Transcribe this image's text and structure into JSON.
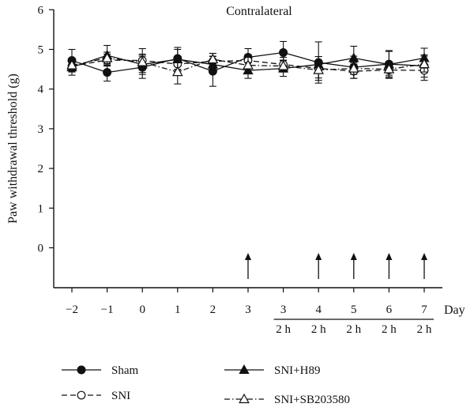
{
  "chart_data": {
    "type": "line",
    "title": "Contralateral",
    "xlabel": "Day",
    "ylabel": "Paw withdrawal threshold (g)",
    "ylim": [
      -1,
      6
    ],
    "yticks": [
      "0",
      "1",
      "2",
      "3",
      "4",
      "5",
      "6"
    ],
    "yticks_values": [
      0,
      1,
      2,
      3,
      4,
      5,
      6
    ],
    "categories": [
      "−2",
      "−1",
      "0",
      "1",
      "2",
      "3",
      "3",
      "4",
      "5",
      "6",
      "7"
    ],
    "sublabels": [
      "",
      "",
      "",
      "",
      "",
      "",
      "2 h",
      "2 h",
      "2 h",
      "2 h",
      "2 h"
    ],
    "arrows_at_index": [
      5,
      7,
      8,
      9,
      10
    ],
    "grid": false,
    "legend_position": "bottom",
    "series": [
      {
        "name": "Sham",
        "marker": "filled-circle",
        "line": "solid",
        "values": [
          4.72,
          4.42,
          4.55,
          4.77,
          4.45,
          4.8,
          4.92,
          4.67,
          4.55,
          4.63,
          4.58
        ],
        "errors": [
          0.28,
          0.22,
          0.28,
          0.28,
          0.38,
          0.22,
          0.28,
          0.52,
          0.28,
          0.32,
          0.28
        ]
      },
      {
        "name": "SNI",
        "marker": "open-circle",
        "line": "dashed",
        "values": [
          4.58,
          4.73,
          4.72,
          4.63,
          4.7,
          4.72,
          4.62,
          4.52,
          4.45,
          4.48,
          4.47
        ],
        "errors": [
          0.15,
          0.15,
          0.3,
          0.2,
          0.2,
          0.15,
          0.18,
          0.3,
          0.18,
          0.2,
          0.25
        ]
      },
      {
        "name": "SNI+H89",
        "marker": "filled-triangle",
        "line": "solid",
        "values": [
          4.55,
          4.85,
          4.62,
          4.75,
          4.62,
          4.47,
          4.52,
          4.62,
          4.78,
          4.62,
          4.78
        ],
        "errors": [
          0.2,
          0.25,
          0.25,
          0.25,
          0.2,
          0.2,
          0.2,
          0.2,
          0.3,
          0.35,
          0.25
        ]
      },
      {
        "name": "SNI+SB203580",
        "marker": "open-triangle",
        "line": "dash-dot",
        "values": [
          4.6,
          4.78,
          4.68,
          4.43,
          4.75,
          4.6,
          4.58,
          4.48,
          4.52,
          4.5,
          4.63
        ],
        "errors": [
          0.15,
          0.15,
          0.2,
          0.3,
          0.15,
          0.2,
          0.15,
          0.2,
          0.15,
          0.15,
          0.2
        ]
      }
    ]
  }
}
